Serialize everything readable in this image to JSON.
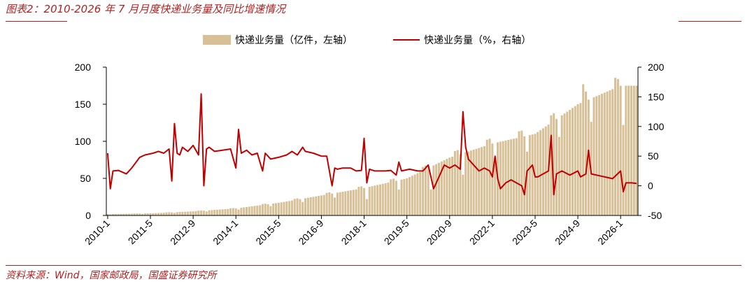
{
  "header": {
    "title": "图表2：2010-2026 年 7 月月度快递业务量及同比增速情况"
  },
  "footer": {
    "source": "资料来源：Wind，国家邮政局，国盛证券研究所"
  },
  "colors": {
    "brand": "#b22222",
    "bar": "#d7bf96",
    "line": "#c00000"
  },
  "chart_data": {
    "type": "bar",
    "legend": {
      "placement": "top-center"
    },
    "x_ticks": [
      "2010-1",
      "2011-5",
      "2012-9",
      "2014-1",
      "2015-5",
      "2016-9",
      "2018-1",
      "2019-5",
      "2020-9",
      "2022-1",
      "2023-5",
      "2024-9",
      "2026-1"
    ],
    "x_start": "2010-1",
    "x_end": "2026-7",
    "y_left": {
      "ticks": [
        0,
        50,
        100,
        150,
        200
      ],
      "range": [
        0,
        200
      ]
    },
    "y_right": {
      "ticks": [
        -50,
        0,
        50,
        100,
        150,
        200
      ],
      "range": [
        -50,
        200
      ]
    },
    "series": [
      {
        "name": "快递业务量（亿件，左轴）",
        "kind": "bar",
        "axis": "left",
        "anchors": [
          [
            "2010-1",
            1.8
          ],
          [
            "2011-5",
            2.8
          ],
          [
            "2012-9",
            5.5
          ],
          [
            "2014-1",
            9.5
          ],
          [
            "2015-5",
            17
          ],
          [
            "2016-9",
            27
          ],
          [
            "2018-1",
            37
          ],
          [
            "2019-5",
            50
          ],
          [
            "2020-9",
            78
          ],
          [
            "2022-1",
            97
          ],
          [
            "2023-5",
            110
          ],
          [
            "2024-9",
            150
          ],
          [
            "2026-1",
            175
          ],
          [
            "2026-7",
            175
          ]
        ],
        "notes": {
          "2024-11": 177,
          "2025-12": 184,
          "2026-2": 122,
          "2021-2": 55,
          "2018-2": 22,
          "2019-2": 35,
          "2020-2": 35
        }
      },
      {
        "name": "快递业务量（%，右轴）",
        "kind": "line",
        "axis": "right",
        "values": [
          [
            "2010-1",
            55
          ],
          [
            "2010-2",
            -5
          ],
          [
            "2010-3",
            25
          ],
          [
            "2010-5",
            26
          ],
          [
            "2010-8",
            20
          ],
          [
            "2010-10",
            30
          ],
          [
            "2011-1",
            48
          ],
          [
            "2011-3",
            52
          ],
          [
            "2011-6",
            55
          ],
          [
            "2011-8",
            58
          ],
          [
            "2011-10",
            55
          ],
          [
            "2011-12",
            62
          ],
          [
            "2012-1",
            8
          ],
          [
            "2012-2",
            105
          ],
          [
            "2012-3",
            55
          ],
          [
            "2012-4",
            52
          ],
          [
            "2012-5",
            65
          ],
          [
            "2012-7",
            58
          ],
          [
            "2012-9",
            68
          ],
          [
            "2012-11",
            52
          ],
          [
            "2012-12",
            155
          ],
          [
            "2013-1",
            0
          ],
          [
            "2013-2",
            62
          ],
          [
            "2013-3",
            65
          ],
          [
            "2013-5",
            58
          ],
          [
            "2013-8",
            60
          ],
          [
            "2013-11",
            62
          ],
          [
            "2014-1",
            30
          ],
          [
            "2014-2",
            95
          ],
          [
            "2014-3",
            55
          ],
          [
            "2014-5",
            60
          ],
          [
            "2014-7",
            52
          ],
          [
            "2014-9",
            55
          ],
          [
            "2014-11",
            25
          ],
          [
            "2014-12",
            55
          ],
          [
            "2015-2",
            45
          ],
          [
            "2015-5",
            48
          ],
          [
            "2015-8",
            52
          ],
          [
            "2015-10",
            58
          ],
          [
            "2015-12",
            52
          ],
          [
            "2016-2",
            65
          ],
          [
            "2016-3",
            58
          ],
          [
            "2016-6",
            55
          ],
          [
            "2016-9",
            50
          ],
          [
            "2016-11",
            50
          ],
          [
            "2017-1",
            0
          ],
          [
            "2017-2",
            30
          ],
          [
            "2017-3",
            28
          ],
          [
            "2017-5",
            30
          ],
          [
            "2017-8",
            30
          ],
          [
            "2017-10",
            25
          ],
          [
            "2017-12",
            26
          ],
          [
            "2018-1",
            80
          ],
          [
            "2018-2",
            5
          ],
          [
            "2018-3",
            28
          ],
          [
            "2018-5",
            25
          ],
          [
            "2018-9",
            25
          ],
          [
            "2018-11",
            26
          ],
          [
            "2019-1",
            18
          ],
          [
            "2019-2",
            40
          ],
          [
            "2019-3",
            25
          ],
          [
            "2019-6",
            28
          ],
          [
            "2019-9",
            25
          ],
          [
            "2019-11",
            25
          ],
          [
            "2020-1",
            35
          ],
          [
            "2020-3",
            -5
          ],
          [
            "2020-4",
            5
          ],
          [
            "2020-7",
            35
          ],
          [
            "2020-9",
            30
          ],
          [
            "2020-11",
            35
          ],
          [
            "2021-1",
            28
          ],
          [
            "2021-2",
            125
          ],
          [
            "2021-3",
            65
          ],
          [
            "2021-4",
            45
          ],
          [
            "2021-6",
            35
          ],
          [
            "2021-8",
            25
          ],
          [
            "2021-10",
            30
          ],
          [
            "2021-12",
            25
          ],
          [
            "2022-1",
            15
          ],
          [
            "2022-2",
            50
          ],
          [
            "2022-3",
            12
          ],
          [
            "2022-4",
            -5
          ],
          [
            "2022-6",
            5
          ],
          [
            "2022-8",
            10
          ],
          [
            "2022-10",
            5
          ],
          [
            "2022-12",
            0
          ],
          [
            "2023-1",
            -15
          ],
          [
            "2023-2",
            25
          ],
          [
            "2023-4",
            35
          ],
          [
            "2023-5",
            15
          ],
          [
            "2023-6",
            15
          ],
          [
            "2023-8",
            20
          ],
          [
            "2023-10",
            25
          ],
          [
            "2023-11",
            85
          ],
          [
            "2023-12",
            -15
          ],
          [
            "2024-1",
            20
          ],
          [
            "2024-3",
            25
          ],
          [
            "2024-6",
            18
          ],
          [
            "2024-9",
            25
          ],
          [
            "2024-10",
            15
          ],
          [
            "2024-12",
            20
          ],
          [
            "2025-1",
            60
          ],
          [
            "2025-2",
            20
          ],
          [
            "2025-4",
            18
          ],
          [
            "2025-7",
            15
          ],
          [
            "2025-10",
            12
          ],
          [
            "2026-1",
            25
          ],
          [
            "2026-2",
            -10
          ],
          [
            "2026-3",
            5
          ],
          [
            "2026-5",
            5
          ],
          [
            "2026-7",
            4
          ]
        ]
      }
    ]
  }
}
